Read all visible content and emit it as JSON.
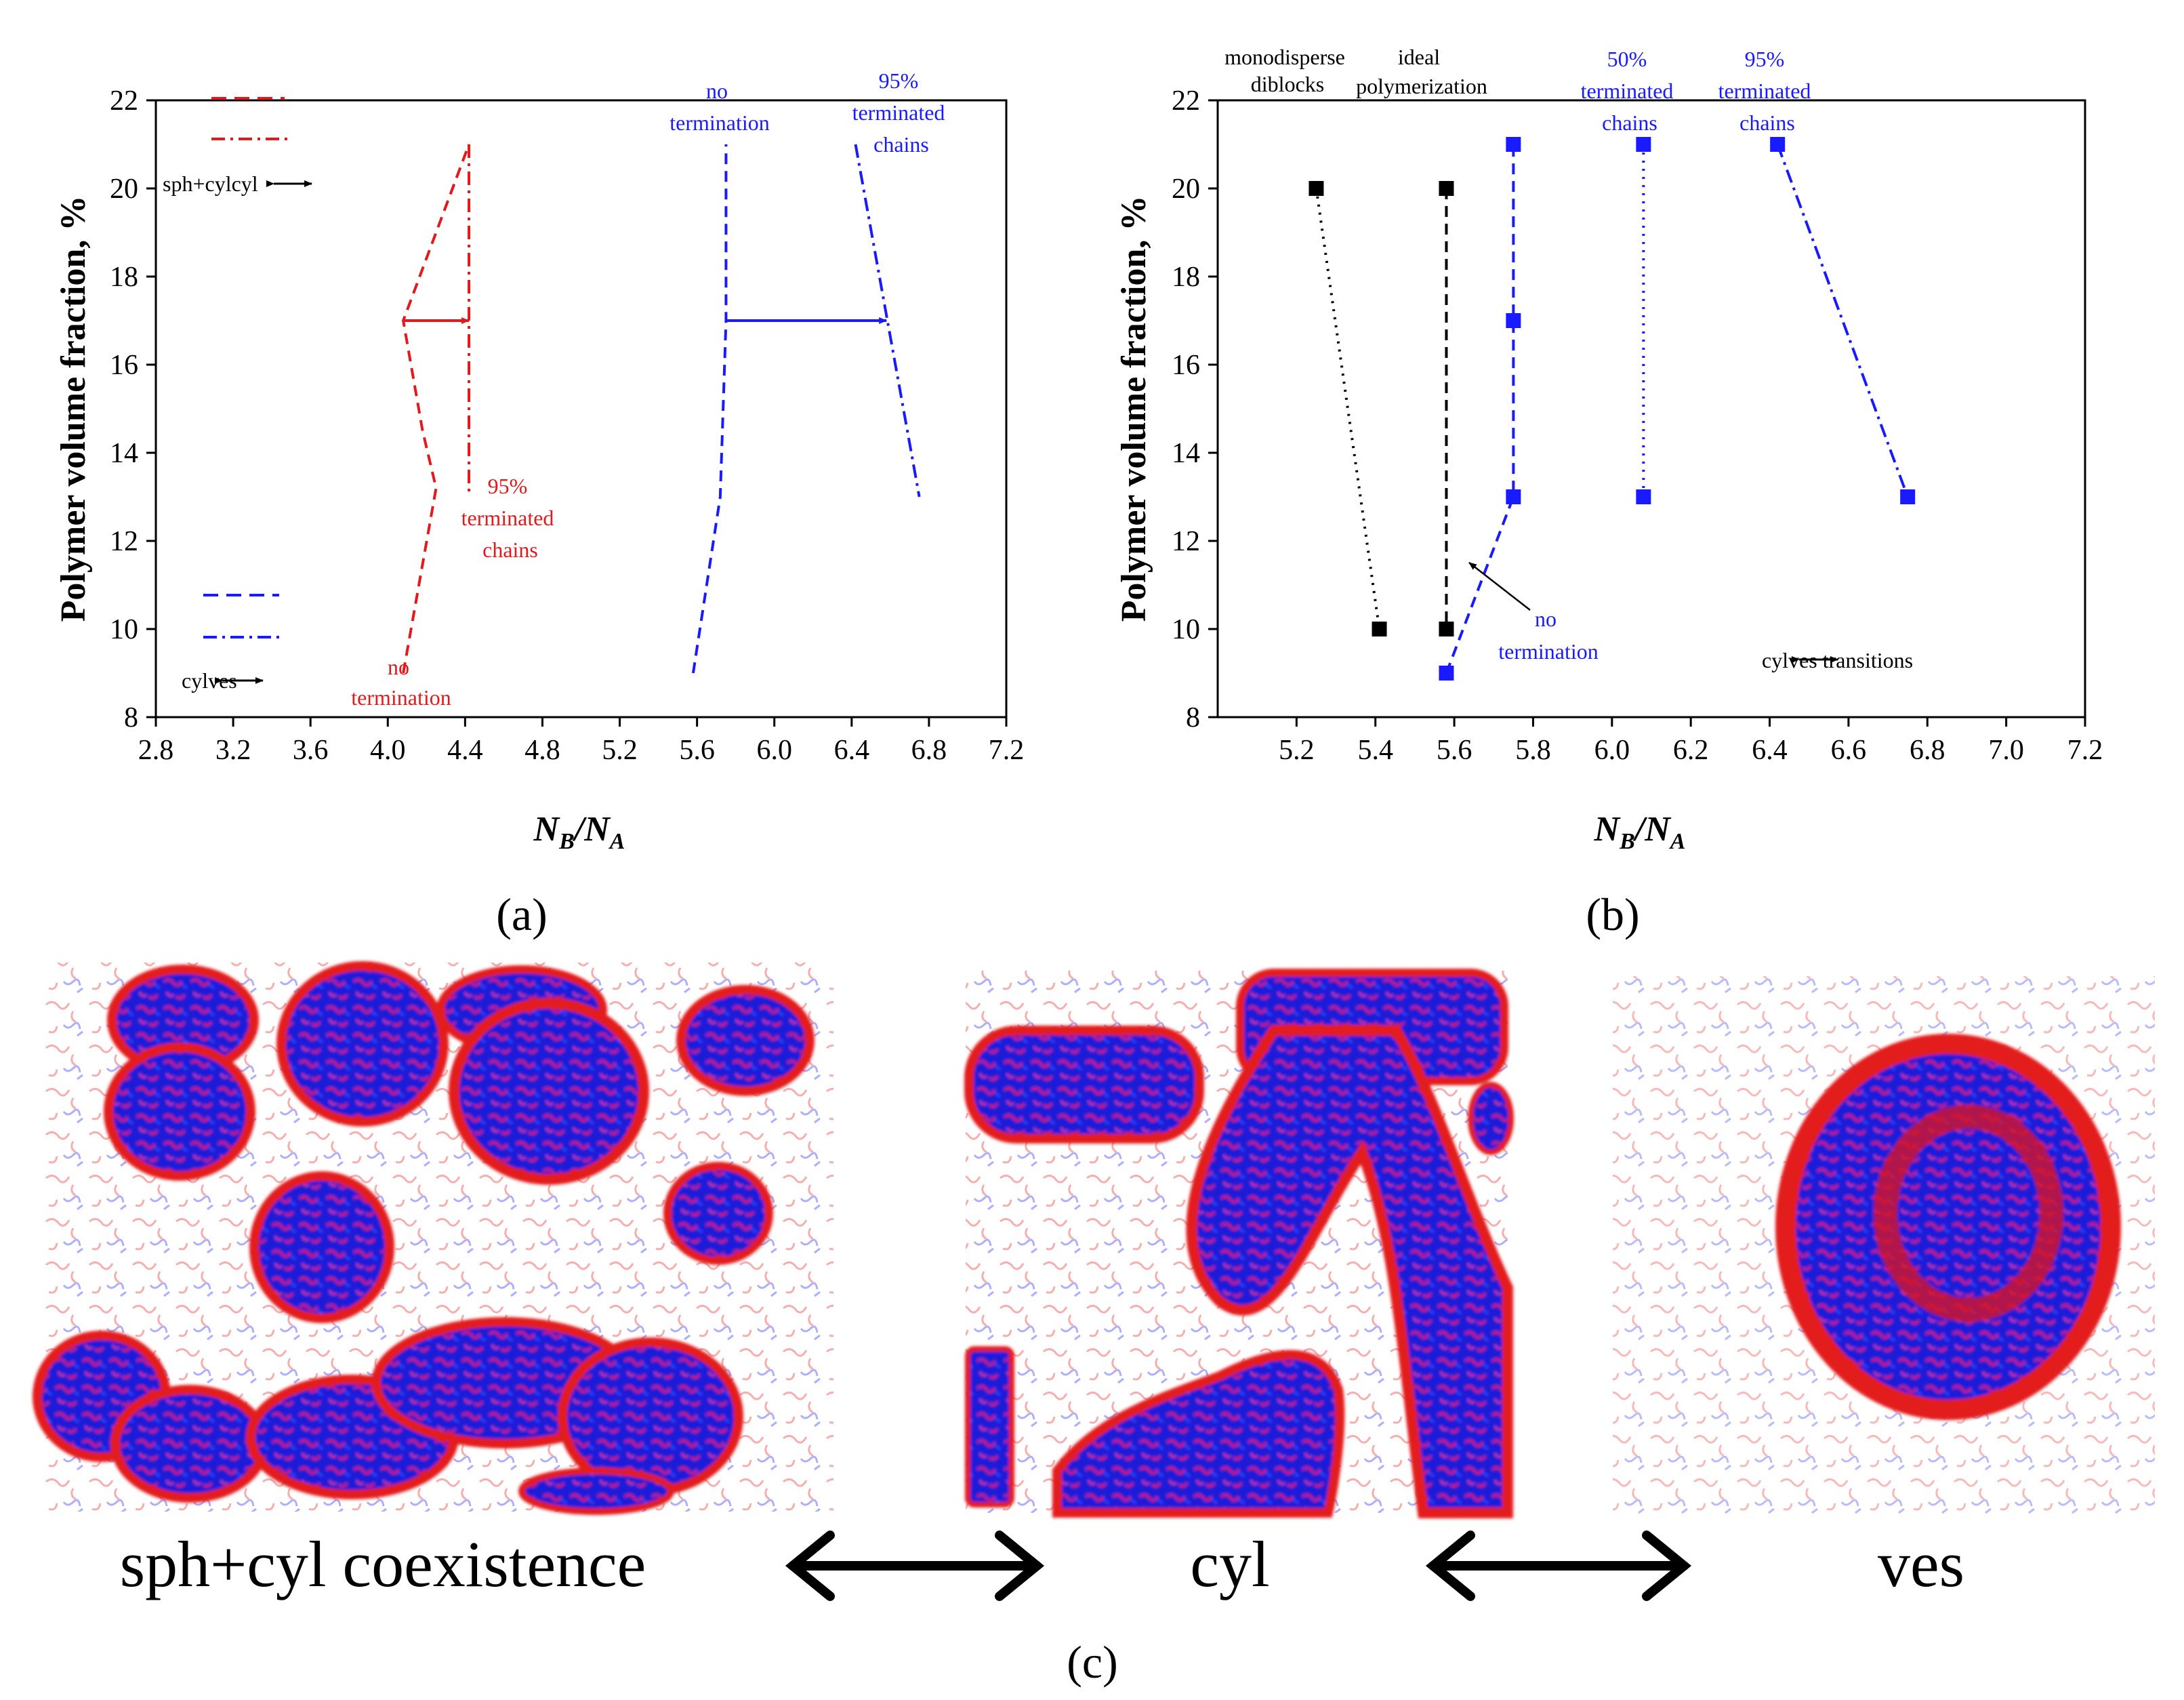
{
  "colors": {
    "red": "#e31a1c",
    "blue": "#1a1aff",
    "black": "#000000"
  },
  "chart_data": [
    {
      "id": "a",
      "type": "line",
      "panel_label": "(a)",
      "xlabel": {
        "main": "N",
        "sub1": "B",
        "sep": "/N",
        "sub2": "A"
      },
      "ylabel": "Polymer volume fraction, %",
      "xlim": [
        2.8,
        7.2
      ],
      "ylim": [
        8,
        22
      ],
      "xticks": [
        "2.8",
        "3.2",
        "3.6",
        "4.0",
        "4.4",
        "4.8",
        "5.2",
        "5.6",
        "6.0",
        "6.4",
        "6.8",
        "7.2"
      ],
      "yticks": [
        "8",
        "10",
        "12",
        "14",
        "16",
        "18",
        "20",
        "22"
      ],
      "series": [
        {
          "name": "sph+cyl↔cyl, no termination",
          "color": "red",
          "dash": "dash",
          "markers": false,
          "x": [
            4.08,
            4.25,
            4.18,
            4.08,
            4.42
          ],
          "y": [
            9,
            13.2,
            14.5,
            17,
            21
          ]
        },
        {
          "name": "sph+cyl↔cyl, 95% terminated chains",
          "color": "red",
          "dash": "dashdot",
          "markers": false,
          "x": [
            4.42,
            4.42
          ],
          "y": [
            21,
            13
          ]
        },
        {
          "name": "cyl↔ves, no termination",
          "color": "blue",
          "dash": "dash",
          "markers": false,
          "x": [
            5.58,
            5.72,
            5.75,
            5.75
          ],
          "y": [
            9,
            13,
            17,
            21
          ]
        },
        {
          "name": "cyl↔ves, 95% terminated chains",
          "color": "blue",
          "dash": "dashdot",
          "markers": false,
          "x": [
            6.42,
            6.75
          ],
          "y": [
            21,
            13
          ]
        }
      ],
      "arrows": [
        {
          "color": "red",
          "from": [
            4.08,
            17
          ],
          "to": [
            4.42,
            17
          ]
        },
        {
          "color": "blue",
          "from": [
            5.75,
            17
          ],
          "to": [
            6.58,
            17
          ]
        }
      ],
      "legend": [
        {
          "label": "sph+cyl↔cyl",
          "items": [
            "dash red",
            "dashdot red"
          ]
        },
        {
          "label": "cyl↔ves",
          "items": [
            "dash blue",
            "dashdot blue"
          ]
        }
      ],
      "annotations": [
        {
          "lines": [
            "sph+cyl",
            "cyl"
          ],
          "color": "black"
        },
        {
          "lines": [
            "cyl",
            "ves"
          ],
          "color": "black"
        },
        {
          "lines": [
            "95%",
            "terminated",
            "chains"
          ],
          "color": "red"
        },
        {
          "lines": [
            "no",
            "termination"
          ],
          "color": "red"
        },
        {
          "lines": [
            "no",
            "termination"
          ],
          "color": "blue"
        },
        {
          "lines": [
            "95%",
            "terminated",
            "chains"
          ],
          "color": "blue"
        }
      ]
    },
    {
      "id": "b",
      "type": "line",
      "panel_label": "(b)",
      "xlabel": {
        "main": "N",
        "sub1": "B",
        "sep": "/N",
        "sub2": "A"
      },
      "ylabel": "Polymer volume fraction, %",
      "xlim": [
        5.0,
        7.2
      ],
      "ylim": [
        8,
        22
      ],
      "xticks": [
        "5.2",
        "5.4",
        "5.6",
        "5.8",
        "6.0",
        "6.2",
        "6.4",
        "6.6",
        "6.8",
        "7.0",
        "7.2"
      ],
      "yticks": [
        "8",
        "10",
        "12",
        "14",
        "16",
        "18",
        "20",
        "22"
      ],
      "series": [
        {
          "name": "monodisperse diblocks",
          "color": "black",
          "dash": "dot",
          "markers": true,
          "x": [
            5.25,
            5.41
          ],
          "y": [
            20,
            10
          ]
        },
        {
          "name": "ideal polymerization",
          "color": "black",
          "dash": "dash",
          "markers": true,
          "x": [
            5.58,
            5.58
          ],
          "y": [
            20,
            10
          ]
        },
        {
          "name": "no termination",
          "color": "blue",
          "dash": "dash",
          "markers": true,
          "x": [
            5.58,
            5.75,
            5.75,
            5.75
          ],
          "y": [
            9,
            13,
            17,
            21
          ]
        },
        {
          "name": "50% terminated chains",
          "color": "blue",
          "dash": "dot",
          "markers": true,
          "x": [
            6.08,
            6.08
          ],
          "y": [
            21,
            13
          ]
        },
        {
          "name": "95% terminated chains",
          "color": "blue",
          "dash": "dashdot",
          "markers": true,
          "x": [
            6.42,
            6.75
          ],
          "y": [
            21,
            13
          ]
        }
      ],
      "annotations": [
        {
          "lines": [
            "monodisperse",
            "diblocks"
          ],
          "color": "black"
        },
        {
          "lines": [
            "ideal",
            "polymerization"
          ],
          "color": "black"
        },
        {
          "lines": [
            "50%",
            "terminated",
            "chains"
          ],
          "color": "blue"
        },
        {
          "lines": [
            "95%",
            "terminated",
            "chains"
          ],
          "color": "blue"
        },
        {
          "lines": [
            "no",
            "termination"
          ],
          "color": "blue"
        },
        {
          "lines": [
            "cyl",
            "ves transitions"
          ],
          "color": "black"
        }
      ]
    }
  ],
  "panel_c": {
    "label": "(c)",
    "morphologies": [
      "sph+cyl coexistence",
      "cyl",
      "ves"
    ]
  }
}
